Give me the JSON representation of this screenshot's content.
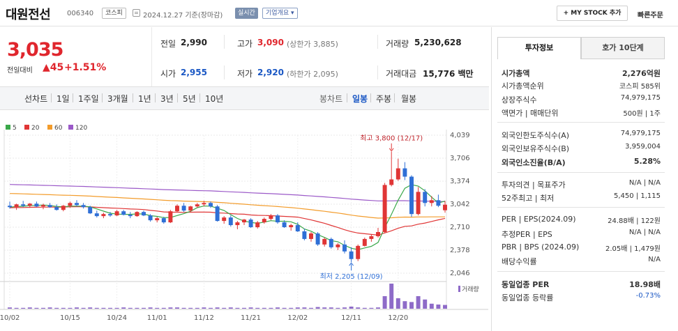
{
  "header": {
    "name": "대원전선",
    "code": "006340",
    "market": "코스피",
    "date": "2024.12.27 기준(장마감)",
    "live": "실시간",
    "company_info": "기업개요 ▾",
    "mystock": "+ MY STOCK 추가",
    "quick_order": "빠른주문"
  },
  "price": {
    "current": "3,035",
    "compare_label": "전일대비",
    "change": "▲45",
    "percent": "+1.51%"
  },
  "summary": {
    "prev_label": "전일",
    "prev": "2,990",
    "high_label": "고가",
    "high": "3,090",
    "upper_limit": "(상한가 3,885)",
    "volume_label": "거래량",
    "volume": "5,230,628",
    "open_label": "시가",
    "open": "2,955",
    "low_label": "저가",
    "low": "2,920",
    "lower_limit": "(하한가 2,095)",
    "amount_label": "거래대금",
    "amount": "15,776 백만"
  },
  "toolbar": {
    "left": [
      "선차트",
      "1일",
      "1주일",
      "3개월",
      "1년",
      "3년",
      "5년",
      "10년"
    ],
    "right": [
      "봉차트",
      "일봉",
      "주봉",
      "월봉"
    ],
    "selected": "일봉"
  },
  "legend": [
    {
      "label": "5",
      "color": "#3aa84a"
    },
    {
      "label": "20",
      "color": "#e03535"
    },
    {
      "label": "60",
      "color": "#f39c2b"
    },
    {
      "label": "120",
      "color": "#9b59c8"
    }
  ],
  "chart_data": {
    "type": "candlestick",
    "y_ticks": [
      "4,039",
      "3,706",
      "3,374",
      "3,042",
      "2,710",
      "2,378",
      "2,046"
    ],
    "x_ticks": [
      "10/02",
      "10/15",
      "10/24",
      "11/01",
      "11/12",
      "11/21",
      "12/02",
      "12/11",
      "12/20"
    ],
    "ylim": [
      2046,
      4039
    ],
    "max_annotation": "최고 3,800 (12/17)",
    "min_annotation": "최저 2,205 (12/09)",
    "volume_label": "거래량",
    "candles": [
      [
        3020,
        3080,
        2980,
        3000
      ],
      [
        3000,
        3050,
        2960,
        3040
      ],
      [
        3040,
        3090,
        3000,
        3020
      ],
      [
        3020,
        3060,
        2990,
        3050
      ],
      [
        3050,
        3080,
        3000,
        3010
      ],
      [
        3010,
        3050,
        2970,
        3030
      ],
      [
        3030,
        3060,
        2990,
        3000
      ],
      [
        3000,
        3040,
        2950,
        2960
      ],
      [
        2960,
        3030,
        2940,
        3020
      ],
      [
        3020,
        3080,
        2990,
        3060
      ],
      [
        3060,
        3100,
        3010,
        3030
      ],
      [
        3030,
        3060,
        2980,
        3000
      ],
      [
        3000,
        3020,
        2900,
        2910
      ],
      [
        2910,
        2950,
        2850,
        2870
      ],
      [
        2870,
        2920,
        2840,
        2900
      ],
      [
        2900,
        2930,
        2860,
        2880
      ],
      [
        2880,
        2960,
        2870,
        2940
      ],
      [
        2940,
        2960,
        2880,
        2890
      ],
      [
        2890,
        2930,
        2840,
        2870
      ],
      [
        2870,
        2940,
        2860,
        2930
      ],
      [
        2930,
        2950,
        2870,
        2880
      ],
      [
        2880,
        2900,
        2790,
        2810
      ],
      [
        2810,
        2860,
        2780,
        2840
      ],
      [
        2840,
        2860,
        2760,
        2780
      ],
      [
        2780,
        2960,
        2770,
        2940
      ],
      [
        2940,
        3040,
        2930,
        3020
      ],
      [
        3020,
        3060,
        2930,
        2950
      ],
      [
        2950,
        3020,
        2930,
        3010
      ],
      [
        3010,
        3060,
        2990,
        3040
      ],
      [
        3040,
        3090,
        3010,
        3060
      ],
      [
        3060,
        3080,
        2990,
        3010
      ],
      [
        3010,
        3030,
        2790,
        2800
      ],
      [
        2800,
        2870,
        2760,
        2850
      ],
      [
        2850,
        2880,
        2720,
        2740
      ],
      [
        2740,
        2800,
        2680,
        2780
      ],
      [
        2780,
        2830,
        2740,
        2820
      ],
      [
        2820,
        2840,
        2700,
        2710
      ],
      [
        2710,
        2800,
        2690,
        2780
      ],
      [
        2780,
        2850,
        2760,
        2830
      ],
      [
        2830,
        2900,
        2810,
        2880
      ],
      [
        2880,
        2900,
        2760,
        2780
      ],
      [
        2780,
        2810,
        2700,
        2710
      ],
      [
        2710,
        2760,
        2660,
        2740
      ],
      [
        2740,
        2780,
        2640,
        2650
      ],
      [
        2650,
        2690,
        2520,
        2540
      ],
      [
        2540,
        2640,
        2500,
        2620
      ],
      [
        2620,
        2640,
        2440,
        2460
      ],
      [
        2460,
        2560,
        2430,
        2540
      ],
      [
        2540,
        2560,
        2400,
        2420
      ],
      [
        2420,
        2480,
        2380,
        2460
      ],
      [
        2460,
        2520,
        2330,
        2360
      ],
      [
        2360,
        2420,
        2205,
        2250
      ],
      [
        2250,
        2460,
        2220,
        2440
      ],
      [
        2440,
        2560,
        2430,
        2540
      ],
      [
        2540,
        2600,
        2500,
        2580
      ],
      [
        2580,
        2700,
        2560,
        2640
      ],
      [
        2640,
        3350,
        2630,
        3320
      ],
      [
        3320,
        3800,
        3300,
        3400
      ],
      [
        3400,
        3700,
        3380,
        3560
      ],
      [
        3560,
        3650,
        3390,
        3440
      ],
      [
        3440,
        3460,
        2860,
        2900
      ],
      [
        2900,
        3290,
        2880,
        3220
      ],
      [
        3220,
        3260,
        3010,
        3060
      ],
      [
        3060,
        3160,
        3010,
        3100
      ],
      [
        3100,
        3180,
        3000,
        3020
      ],
      [
        2955,
        3090,
        2920,
        3035
      ]
    ],
    "volume_bars": [
      3,
      2,
      2,
      3,
      2,
      2,
      3,
      2,
      2,
      2,
      3,
      2,
      3,
      2,
      2,
      2,
      2,
      3,
      2,
      2,
      2,
      3,
      2,
      2,
      3,
      3,
      2,
      2,
      2,
      3,
      2,
      3,
      2,
      3,
      2,
      2,
      3,
      2,
      2,
      2,
      3,
      2,
      2,
      3,
      3,
      2,
      4,
      3,
      3,
      2,
      3,
      5,
      3,
      2,
      2,
      3,
      30,
      60,
      25,
      18,
      16,
      30,
      22,
      12,
      10,
      9
    ]
  },
  "right_panel": {
    "tabs": [
      "투자정보",
      "호가 10단계"
    ],
    "rows": [
      {
        "k": "시가총액",
        "v": "2,276억원",
        "bold": true
      },
      {
        "k": "시가총액순위",
        "v": "코스피 585위"
      },
      {
        "k": "상장주식수",
        "v": "74,979,175"
      },
      {
        "k": "액면가 | 매매단위",
        "v": "500원 | 1주"
      },
      {
        "k": "외국인한도주식수(A)",
        "v": "74,979,175"
      },
      {
        "k": "외국인보유주식수(B)",
        "v": "3,959,004"
      },
      {
        "k": "외국인소진율(B/A)",
        "v": "5.28%",
        "bold": true
      },
      {
        "k": "투자의견 | 목표주가",
        "v": "N/A | N/A"
      },
      {
        "k": "52주최고 | 최저",
        "v": "5,450 | 1,115"
      },
      {
        "k": "PER | EPS(2024.09)",
        "v": "24.88배 | 122원"
      },
      {
        "k": "추정PER | EPS",
        "v": "N/A | N/A"
      },
      {
        "k": "PBR | BPS (2024.09)",
        "v": "2.05배 | 1,479원"
      },
      {
        "k": "배당수익률",
        "v": "N/A"
      },
      {
        "k": "동일업종 PER",
        "v": "18.98배",
        "bold": true
      },
      {
        "k": "동일업종 등락률",
        "v": "-0.73%",
        "blue": true
      }
    ]
  }
}
